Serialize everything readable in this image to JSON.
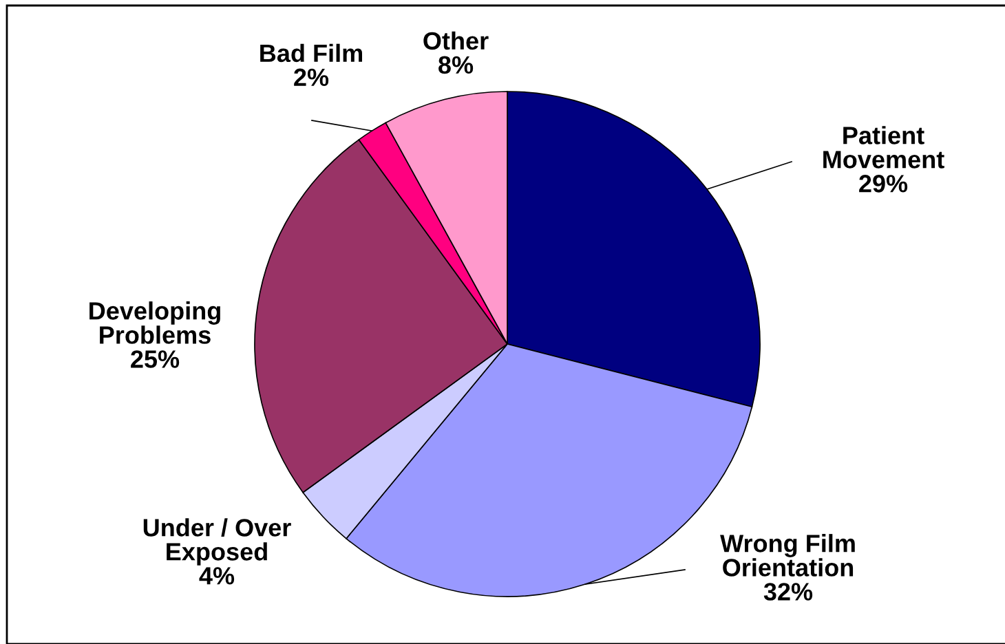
{
  "chart_data": {
    "type": "pie",
    "categories": [
      "Patient\nMovement",
      "Wrong Film\nOrientation",
      "Under / Over\nExposed",
      "Developing\nProblems",
      "Bad Film",
      "Other"
    ],
    "values": [
      29,
      32,
      4,
      25,
      2,
      8
    ],
    "value_labels": [
      "29%",
      "32%",
      "4%",
      "25%",
      "2%",
      "8%"
    ],
    "colors": [
      "#000080",
      "#9999ff",
      "#ccccff",
      "#993366",
      "#ff0080",
      "#ff99cc"
    ],
    "legend": false
  }
}
